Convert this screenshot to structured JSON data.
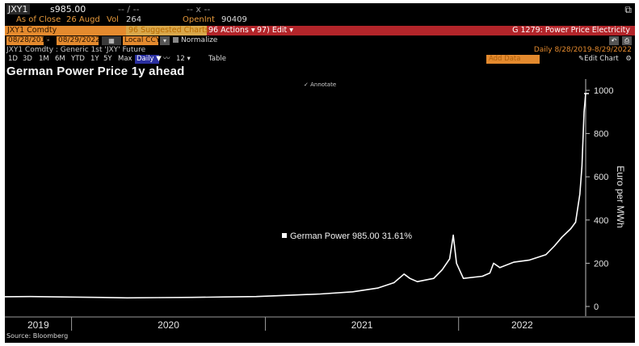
{
  "header": {
    "ticker": "JXY1",
    "price": "s985.00",
    "dash1": "-- / --",
    "dash2": "-- x --",
    "expand_icon": "popout-icon",
    "as_of_label": "As of Close",
    "as_of_date": "26 Augd",
    "vol_label": "Vol",
    "vol_value": "264",
    "oi_label": "OpenInt",
    "oi_value": "90409"
  },
  "toolbar": {
    "security": "JXY1 Comdty",
    "suggested": "96 Suggested Charts",
    "actions": "96 Actions",
    "edit": "97) Edit",
    "function_title": "G 1279: Power Price Electricity"
  },
  "dates": {
    "start": "08/28/2019",
    "end": "08/29/2022",
    "currency": "Local CCY",
    "normalize": "Normalize"
  },
  "info": {
    "description": "JXY1 Comdty : Generic 1st 'JXY' Future",
    "range": "Daily  8/28/2019-8/29/2022"
  },
  "periods": [
    "1D",
    "3D",
    "1M",
    "6M",
    "YTD",
    "1Y",
    "5Y",
    "Max"
  ],
  "period_controls": {
    "daily": "Daily",
    "arrow": "▼",
    "mode": "12",
    "table": "Table",
    "add_data": "Add Data",
    "edit_chart": "Edit Chart",
    "settings_icon": "gear-icon"
  },
  "annotate_label": "Annotate",
  "colors": {
    "background": "#000000",
    "line": "#ffffff",
    "accent_orange": "#e48a2e",
    "accent_red": "#b3252a"
  },
  "chart_data": {
    "type": "line",
    "title": "German Power Price 1y ahead",
    "ylabel": "Euro per MWh",
    "ylim": [
      0,
      1000
    ],
    "yticks": [
      "0",
      "200",
      "400",
      "600",
      "800",
      "1000"
    ],
    "xticks": [
      "2019",
      "2020",
      "2021",
      "2022"
    ],
    "xlim": [
      "2019-08-28",
      "2022-08-29"
    ],
    "grid": false,
    "annotation": "German Power 985.00 31.61%",
    "series": [
      {
        "x": [
          "2019-08-28",
          "2019-10-15",
          "2019-12-15",
          "2020-02-15",
          "2020-04-15",
          "2020-06-15",
          "2020-08-15",
          "2020-10-15",
          "2020-12-15",
          "2021-02-15",
          "2021-04-15",
          "2021-06-15",
          "2021-08-01",
          "2021-09-01",
          "2021-09-20",
          "2021-10-01",
          "2021-10-15",
          "2021-11-15",
          "2021-12-01",
          "2021-12-15",
          "2021-12-22",
          "2021-12-28",
          "2022-01-10",
          "2022-02-15",
          "2022-03-01",
          "2022-03-08",
          "2022-03-20",
          "2022-04-15",
          "2022-05-15",
          "2022-06-15",
          "2022-07-01",
          "2022-07-15",
          "2022-08-01",
          "2022-08-10",
          "2022-08-18",
          "2022-08-22",
          "2022-08-26",
          "2022-08-29"
        ],
        "values": [
          45,
          46,
          44,
          42,
          40,
          41,
          42,
          44,
          46,
          52,
          58,
          68,
          85,
          110,
          150,
          130,
          115,
          130,
          170,
          220,
          330,
          200,
          130,
          140,
          155,
          200,
          180,
          205,
          215,
          240,
          280,
          320,
          360,
          390,
          520,
          650,
          900,
          985
        ]
      }
    ]
  },
  "source": "Source: Bloomberg"
}
